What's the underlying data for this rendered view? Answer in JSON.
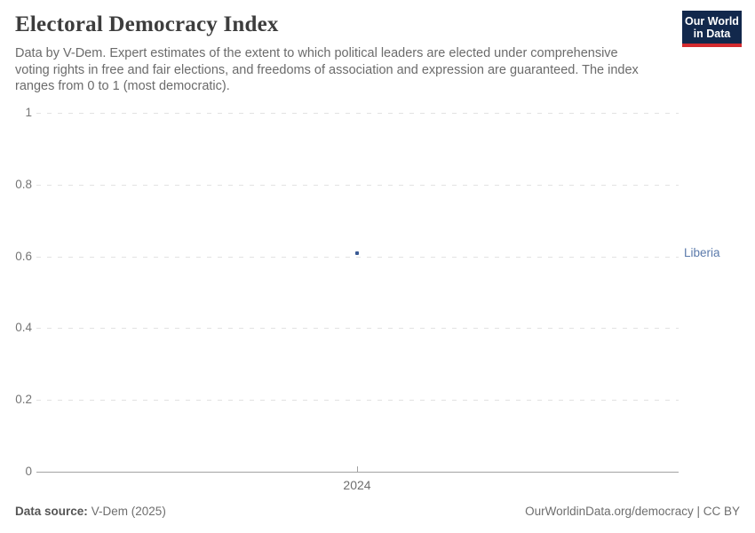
{
  "header": {
    "title": "Electoral Democracy Index",
    "subtitle": "Data by V-Dem. Expert estimates of the extent to which political leaders are elected under comprehensive voting rights in free and fair elections, and freedoms of association and expression are guaranteed. The index ranges from 0 to 1 (most democratic).",
    "logo": {
      "line1": "Our World",
      "line2": "in Data",
      "bg_color": "#12284c",
      "accent_color": "#d42b2f"
    }
  },
  "chart_data": {
    "type": "scatter",
    "title": "Electoral Democracy Index",
    "x": [
      2024
    ],
    "xticks": [
      "2024"
    ],
    "series": [
      {
        "name": "Liberia",
        "values": [
          0.61
        ],
        "point_color": "#3a5a94",
        "label_color": "#5b7aab"
      }
    ],
    "yticks": [
      0,
      0.2,
      0.4,
      0.6,
      0.8,
      1
    ],
    "ylim": [
      0,
      1
    ],
    "grid": "horizontal-dashed",
    "legend_position": "entity-label-right"
  },
  "footer": {
    "data_source_label": "Data source:",
    "data_source_value": "V-Dem (2025)",
    "credit": "OurWorldinData.org/democracy | CC BY"
  }
}
